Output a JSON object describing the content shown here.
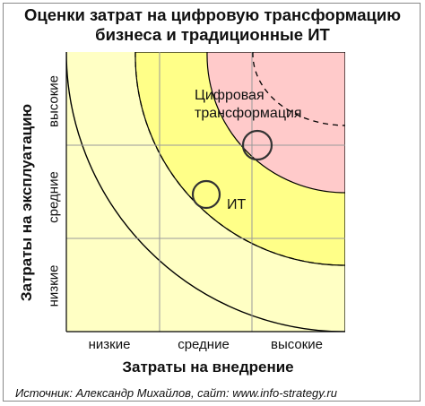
{
  "title": {
    "line1": "Оценки затрат на цифровую трансформацию",
    "line2": "бизнеса и традиционные ИТ"
  },
  "x_axis": {
    "label": "Затраты на внедрение",
    "ticks": [
      "низкие",
      "средние",
      "высокие"
    ]
  },
  "y_axis": {
    "label": "Затраты на эксплуатацию",
    "ticks": [
      "низкие",
      "средние",
      "высокие"
    ]
  },
  "annotations": {
    "digital_line1": "Цифровая",
    "digital_line2": "трансформация",
    "it": "ИТ"
  },
  "zones": {
    "outer_color": "#ffffc4",
    "middle_color": "#ffff88",
    "inner_color": "#ffcaca"
  },
  "source": "Источник: Александр Михайлов, сайт: www.info-strategy.ru"
}
